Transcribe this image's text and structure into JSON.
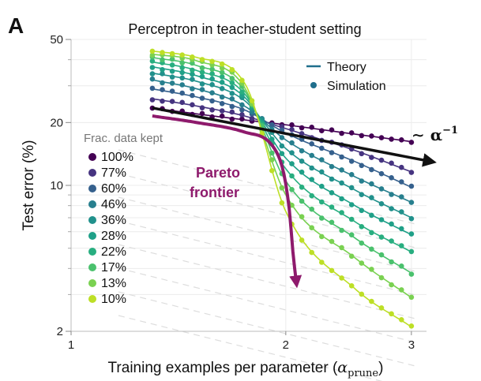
{
  "chart_data": {
    "type": "line",
    "panel_label": "A",
    "title": "Perceptron in teacher-student setting",
    "xlabel": "Training examples per parameter (",
    "xlabel_math": "α",
    "xlabel_sub": "prune",
    "xlabel_close": ")",
    "ylabel": "Test error (%)",
    "xscale": "log",
    "yscale": "log",
    "xlim": [
      1,
      3.15
    ],
    "ylim": [
      2,
      50
    ],
    "xticks": [
      "1",
      "2",
      "3"
    ],
    "xtick_values": [
      1,
      2,
      3
    ],
    "yticks": [
      "50",
      "20",
      "10",
      "2"
    ],
    "ytick_values": [
      50,
      20,
      10,
      2
    ],
    "legend_entries": [
      {
        "label": "Theory",
        "marker": "line",
        "color": "#1f6e8c"
      },
      {
        "label": "Simulation",
        "marker": "dot",
        "color": "#1f6e8c"
      }
    ],
    "colorbar_title": "Frac. data kept",
    "series": [
      {
        "name": "100%",
        "fraction": 1.0,
        "color": "#440154",
        "x": [
          1.3,
          1.5,
          1.75,
          2.0,
          2.5,
          3.0
        ],
        "y": [
          23.5,
          22.0,
          20.6,
          19.5,
          17.6,
          16.2
        ]
      },
      {
        "name": "77%",
        "fraction": 0.77,
        "color": "#463480",
        "x": [
          1.3,
          1.5,
          1.75,
          2.0,
          2.5,
          3.0
        ],
        "y": [
          26.0,
          24.0,
          21.5,
          18.7,
          14.7,
          11.6
        ]
      },
      {
        "name": "60%",
        "fraction": 0.6,
        "color": "#35608d",
        "x": [
          1.3,
          1.5,
          1.75,
          2.0,
          2.5,
          3.0
        ],
        "y": [
          29.0,
          26.5,
          23.0,
          17.8,
          13.0,
          9.8
        ]
      },
      {
        "name": "46%",
        "fraction": 0.46,
        "color": "#277f8e",
        "x": [
          1.3,
          1.5,
          1.75,
          2.0,
          2.5,
          3.0
        ],
        "y": [
          32.0,
          29.0,
          24.0,
          16.5,
          11.0,
          8.3
        ]
      },
      {
        "name": "36%",
        "fraction": 0.36,
        "color": "#21918c",
        "x": [
          1.3,
          1.5,
          1.75,
          2.0,
          2.5,
          3.0
        ],
        "y": [
          34.5,
          31.5,
          25.5,
          15.0,
          9.5,
          7.0
        ]
      },
      {
        "name": "28%",
        "fraction": 0.28,
        "color": "#1fa088",
        "x": [
          1.3,
          1.5,
          1.75,
          2.0,
          2.5,
          3.0
        ],
        "y": [
          37.0,
          33.5,
          26.5,
          13.5,
          8.0,
          5.8
        ]
      },
      {
        "name": "22%",
        "fraction": 0.22,
        "color": "#28ae80",
        "x": [
          1.3,
          1.5,
          1.75,
          2.0,
          2.5,
          3.0
        ],
        "y": [
          39.0,
          35.5,
          27.5,
          12.0,
          6.7,
          4.8
        ]
      },
      {
        "name": "17%",
        "fraction": 0.17,
        "color": "#4ac16d",
        "x": [
          1.3,
          1.5,
          1.75,
          2.0,
          2.5,
          3.0
        ],
        "y": [
          41.0,
          37.5,
          28.5,
          10.5,
          5.6,
          3.8
        ]
      },
      {
        "name": "13%",
        "fraction": 0.13,
        "color": "#7ad151",
        "x": [
          1.3,
          1.5,
          1.75,
          2.0,
          2.5,
          3.0
        ],
        "y": [
          42.5,
          39.5,
          29.5,
          9.0,
          4.5,
          2.9
        ]
      },
      {
        "name": "10%",
        "fraction": 0.1,
        "color": "#bddf26",
        "x": [
          1.3,
          1.5,
          1.75,
          2.0,
          2.5,
          3.0
        ],
        "y": [
          44.0,
          41.0,
          31.0,
          7.5,
          3.2,
          2.1
        ]
      }
    ],
    "pareto_frontier": {
      "label_line1": "Pareto",
      "label_line2": "frontier",
      "color": "#8e1a6c",
      "x": [
        1.3,
        1.5,
        1.75,
        1.95,
        2.02,
        2.05,
        2.07
      ],
      "y": [
        21.5,
        20.0,
        18.0,
        14.0,
        8.0,
        4.5,
        3.4
      ]
    },
    "scaling_arrow": {
      "label": "∼ α",
      "exponent": "−1",
      "color": "#111111",
      "x": [
        1.3,
        3.15
      ],
      "y": [
        23.5,
        13.0
      ]
    },
    "grid": true,
    "legend_position": "top-right"
  }
}
